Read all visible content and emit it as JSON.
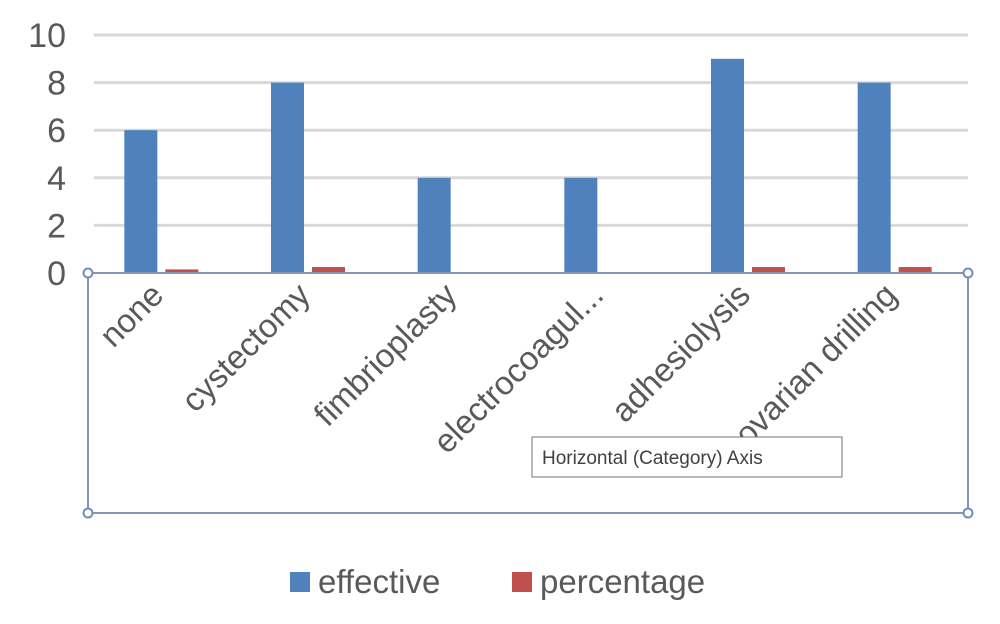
{
  "chart_data": {
    "type": "bar",
    "categories": [
      "none",
      "cystectomy",
      "fimbrioplasty",
      "electrocoagul...",
      "adhesiolysis",
      "ovarian drilling"
    ],
    "series": [
      {
        "name": "effective",
        "values": [
          6,
          8,
          4,
          4,
          9,
          8
        ],
        "color": "#4f81bd"
      },
      {
        "name": "percentage",
        "values": [
          0.15,
          0.25,
          0,
          0,
          0.25,
          0.25
        ],
        "color": "#c0504d"
      }
    ],
    "yticks": [
      0,
      2,
      4,
      6,
      8,
      10
    ],
    "ylim": [
      0,
      10
    ],
    "grid": true,
    "legend_position": "bottom",
    "title": "",
    "xlabel": "",
    "ylabel": ""
  },
  "tooltip": {
    "text": "Horizontal (Category) Axis"
  },
  "selection": {
    "state": "horizontal axis selected"
  }
}
